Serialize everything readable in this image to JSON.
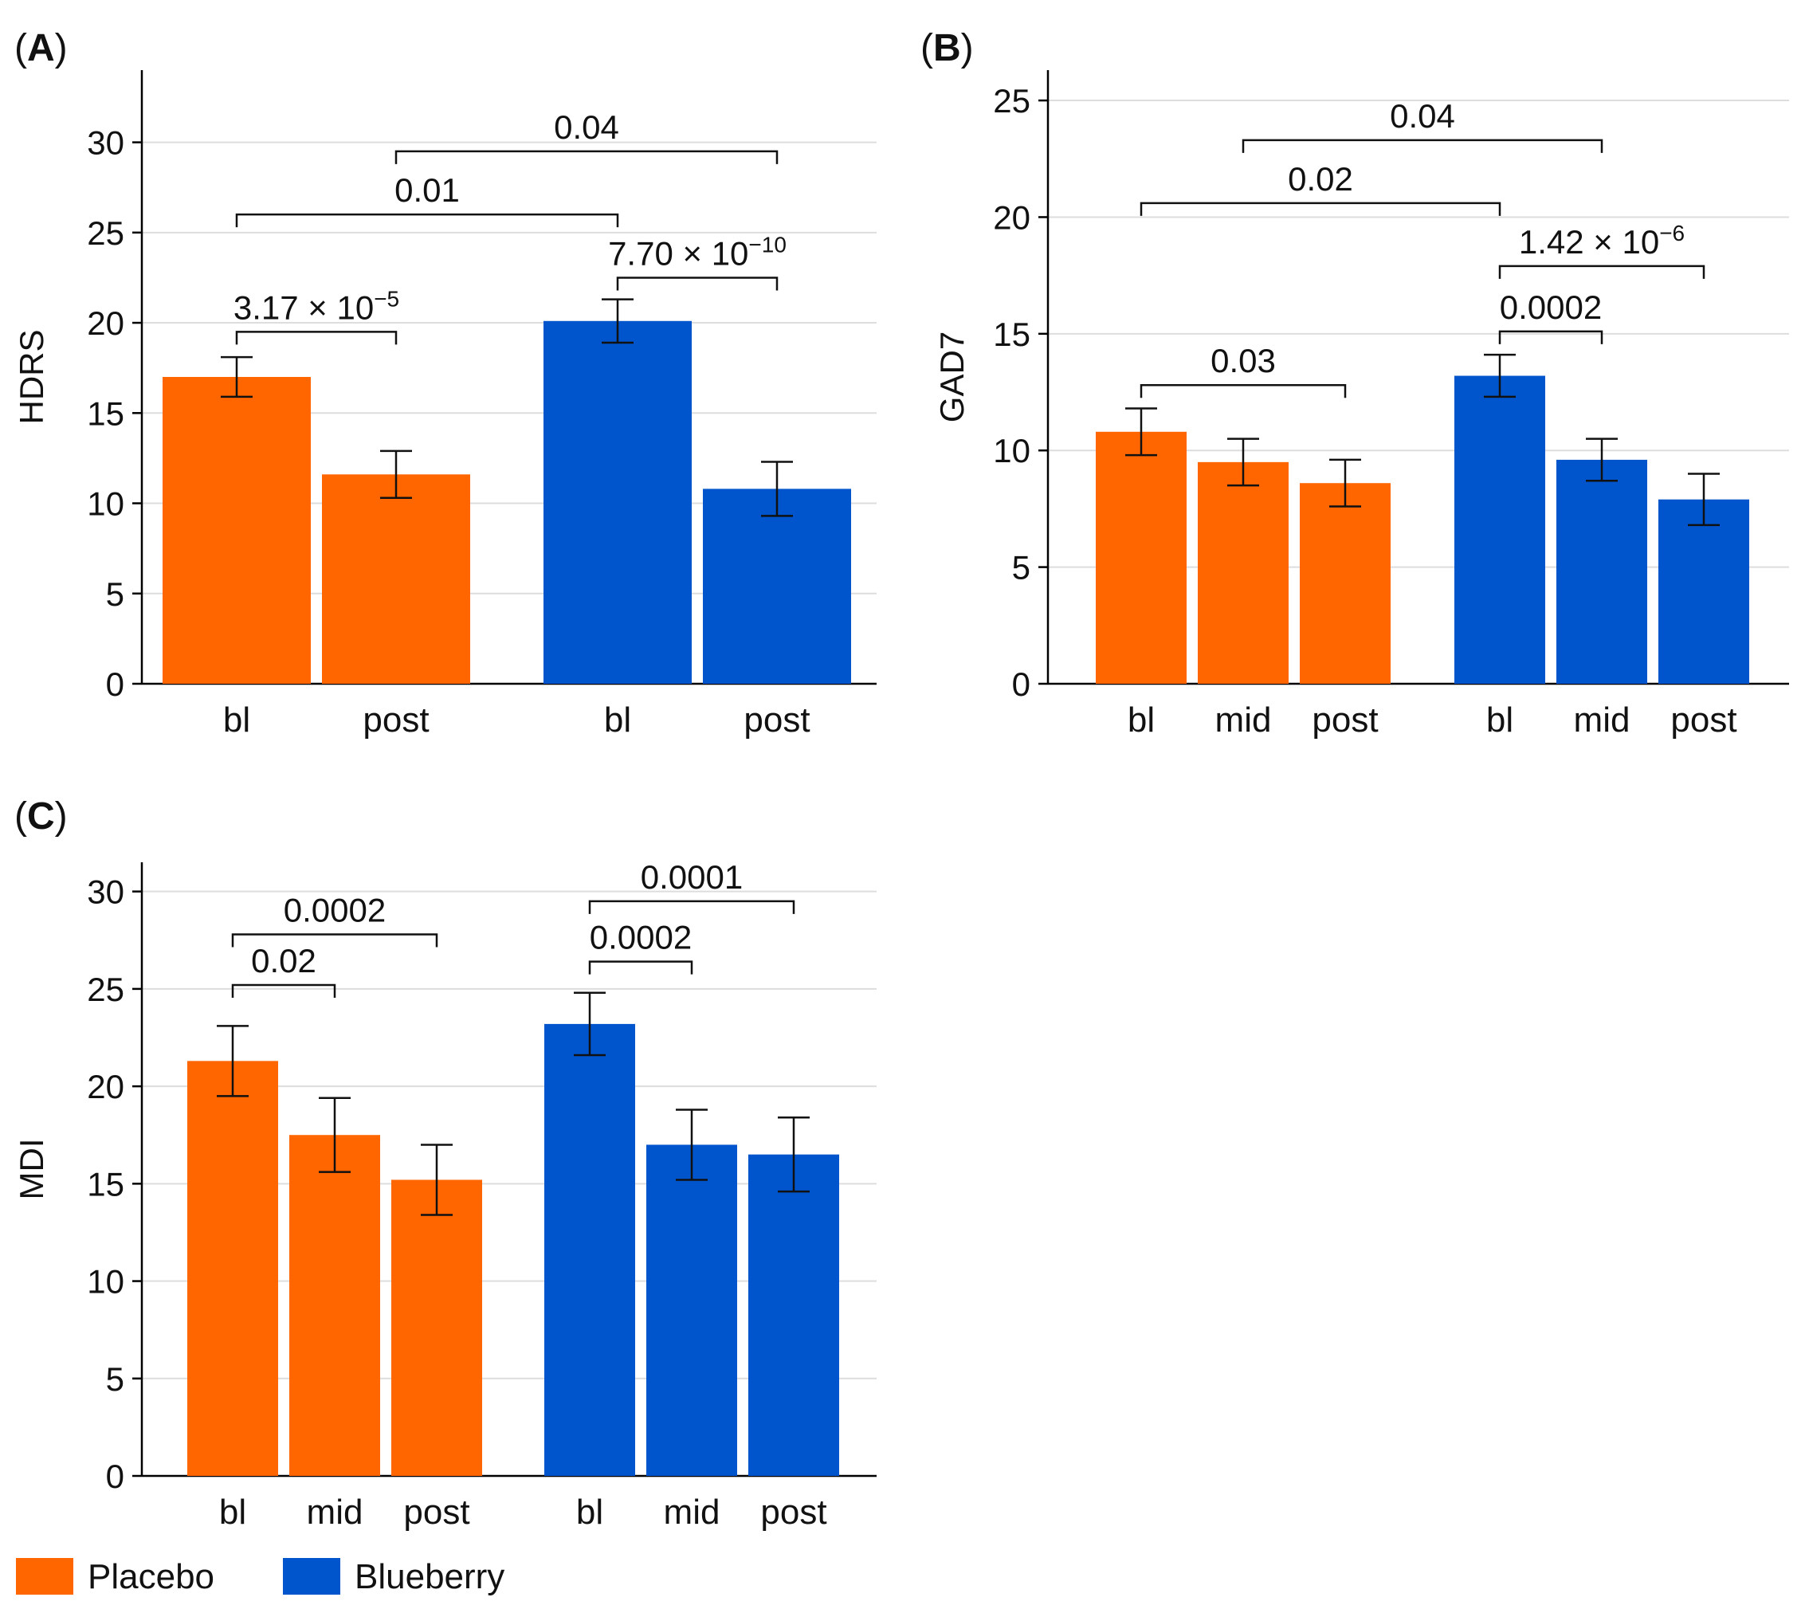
{
  "colors": {
    "placebo": "#FF6600",
    "blueberry": "#0055CC",
    "grid": "#DDDDDD",
    "axis": "#000000"
  },
  "legend": [
    {
      "name": "Placebo",
      "color": "#FF6600"
    },
    {
      "name": "Blueberry",
      "color": "#0055CC"
    }
  ],
  "chart_data": [
    {
      "id": "A",
      "panel_label": "A",
      "type": "bar",
      "ylabel": "HDRS",
      "ylim": [
        0,
        34
      ],
      "yticks": [
        0,
        5,
        10,
        15,
        20,
        25,
        30
      ],
      "grid": true,
      "categories": [
        "bl",
        "post",
        "bl",
        "post"
      ],
      "groups": [
        "Placebo",
        "Placebo",
        "Blueberry",
        "Blueberry"
      ],
      "values": [
        17.0,
        11.6,
        20.1,
        10.8
      ],
      "errors": [
        1.1,
        1.3,
        1.2,
        1.5
      ],
      "significance": [
        {
          "from": 0,
          "to": 1,
          "level": 19.5,
          "label": "3.17 × 10",
          "exp": "−5"
        },
        {
          "from": 2,
          "to": 3,
          "level": 22.5,
          "label": "7.70 × 10",
          "exp": "−10"
        },
        {
          "from": 0,
          "to": 2,
          "level": 26.0,
          "label": "0.01",
          "exp": ""
        },
        {
          "from": 1,
          "to": 3,
          "level": 29.5,
          "label": "0.04",
          "exp": ""
        }
      ]
    },
    {
      "id": "B",
      "panel_label": "B",
      "type": "bar",
      "ylabel": "GAD7",
      "ylim": [
        0,
        26.3
      ],
      "yticks": [
        0,
        5,
        10,
        15,
        20,
        25
      ],
      "grid": true,
      "categories": [
        "bl",
        "mid",
        "post",
        "bl",
        "mid",
        "post"
      ],
      "groups": [
        "Placebo",
        "Placebo",
        "Placebo",
        "Blueberry",
        "Blueberry",
        "Blueberry"
      ],
      "values": [
        10.8,
        9.5,
        8.6,
        13.2,
        9.6,
        7.9
      ],
      "errors": [
        1.0,
        1.0,
        1.0,
        0.9,
        0.9,
        1.1
      ],
      "significance": [
        {
          "from": 0,
          "to": 2,
          "level": 12.8,
          "label": "0.03",
          "exp": ""
        },
        {
          "from": 3,
          "to": 4,
          "level": 15.1,
          "label": "0.0002",
          "exp": ""
        },
        {
          "from": 3,
          "to": 5,
          "level": 17.9,
          "label": "1.42 × 10",
          "exp": "−6"
        },
        {
          "from": 0,
          "to": 3,
          "level": 20.6,
          "label": "0.02",
          "exp": ""
        },
        {
          "from": 1,
          "to": 4,
          "level": 23.3,
          "label": "0.04",
          "exp": ""
        }
      ]
    },
    {
      "id": "C",
      "panel_label": "C",
      "type": "bar",
      "ylabel": "MDI",
      "ylim": [
        0,
        31.5
      ],
      "yticks": [
        0,
        5,
        10,
        15,
        20,
        25,
        30
      ],
      "grid": true,
      "categories": [
        "bl",
        "mid",
        "post",
        "bl",
        "mid",
        "post"
      ],
      "groups": [
        "Placebo",
        "Placebo",
        "Placebo",
        "Blueberry",
        "Blueberry",
        "Blueberry"
      ],
      "values": [
        21.3,
        17.5,
        15.2,
        23.2,
        17.0,
        16.5
      ],
      "errors": [
        1.8,
        1.9,
        1.8,
        1.6,
        1.8,
        1.9
      ],
      "significance": [
        {
          "from": 0,
          "to": 1,
          "level": 25.2,
          "label": "0.02",
          "exp": ""
        },
        {
          "from": 0,
          "to": 2,
          "level": 27.8,
          "label": "0.0002",
          "exp": ""
        },
        {
          "from": 3,
          "to": 4,
          "level": 26.4,
          "label": "0.0002",
          "exp": ""
        },
        {
          "from": 3,
          "to": 5,
          "level": 29.5,
          "label": "0.0001",
          "exp": ""
        }
      ]
    }
  ]
}
